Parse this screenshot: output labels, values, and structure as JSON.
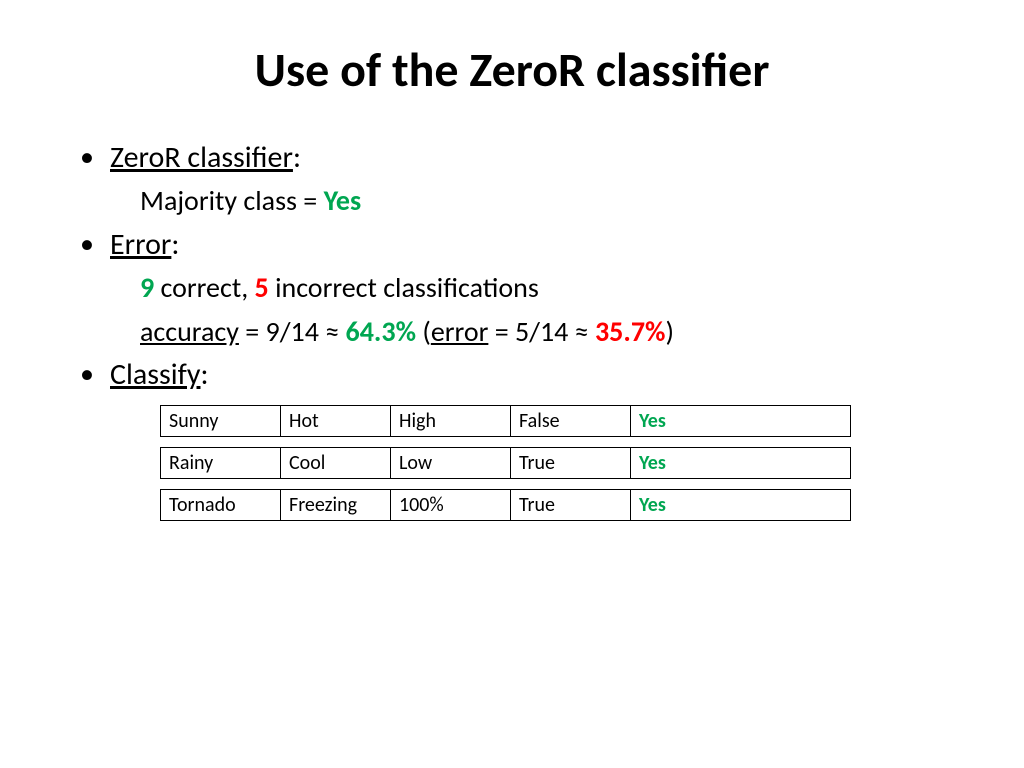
{
  "title": "Use of the ZeroR classifier",
  "bullet1": {
    "head": "ZeroR classifier",
    "colon": ":"
  },
  "majority": {
    "label": "Majority class = ",
    "value": "Yes"
  },
  "bullet2": {
    "head": "Error",
    "colon": ":"
  },
  "errline1": {
    "correct_n": "9",
    "correct_text": " correct, ",
    "incorrect_n": "5",
    "incorrect_text": " incorrect classifications"
  },
  "errline2": {
    "acc_label": "accuracy",
    "acc_eq": " = 9/14 ≈ ",
    "acc_val": "64.3%",
    "open": " (",
    "err_label": "error",
    "err_eq": " = 5/14 ≈ ",
    "err_val": "35.7%",
    "close": ")"
  },
  "bullet3": {
    "head": "Classify",
    "colon": ":"
  },
  "rows": [
    {
      "c0": "Sunny",
      "c1": "Hot",
      "c2": "High",
      "c3": "False",
      "c4": "Yes"
    },
    {
      "c0": "Rainy",
      "c1": "Cool",
      "c2": "Low",
      "c3": "True",
      "c4": "Yes"
    },
    {
      "c0": "Tornado",
      "c1": "Freezing",
      "c2": "100%",
      "c3": "True",
      "c4": "Yes"
    }
  ],
  "colors": {
    "green": "#00a651",
    "red": "#ff0000",
    "text": "#000000",
    "bg": "#ffffff"
  }
}
